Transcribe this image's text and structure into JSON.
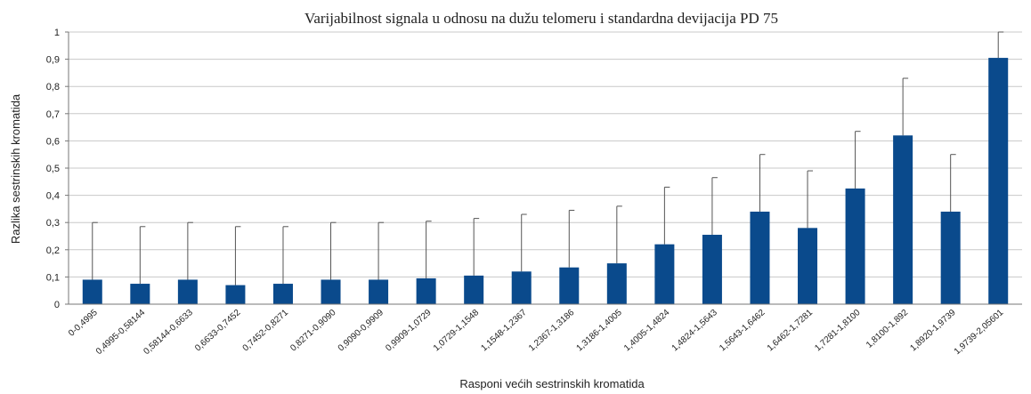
{
  "chart_data": {
    "type": "bar",
    "title": "Varijabilnost signala u odnosu na dužu telomeru i standardna devijacija PD 75",
    "xlabel": "Rasponi većih sestrinskih kromatida",
    "ylabel": "Razlika sestrinskih kromatida",
    "ylim": [
      0,
      1
    ],
    "yticks": [
      "0",
      "0,1",
      "0,2",
      "0,3",
      "0,4",
      "0,5",
      "0,6",
      "0,7",
      "0,8",
      "0,9",
      "1"
    ],
    "grid": true,
    "bar_color": "#0a4a8c",
    "categories": [
      "0-0,4995",
      "0,4995-0,58144",
      "0,58144-0,6633",
      "0,6633-0,7452",
      "0,7452-0,8271",
      "0,8271-0,9090",
      "0,9090-0,9909",
      "0,9909-1,0729",
      "1,0729-1,1548",
      "1,1548-1,2367",
      "1,2367-1,3186",
      "1,3186-1,4005",
      "1,4005-1,4824",
      "1,4824-1,5643",
      "1,5643-1,6462",
      "1,6462-1,7281",
      "1,7281-1,8100",
      "1,8100-1,892",
      "1,8920-1,9739",
      "1,9739-2,05601"
    ],
    "values": [
      0.09,
      0.075,
      0.09,
      0.07,
      0.075,
      0.09,
      0.09,
      0.095,
      0.105,
      0.12,
      0.135,
      0.15,
      0.22,
      0.255,
      0.34,
      0.28,
      0.425,
      0.62,
      0.34,
      0.905
    ],
    "error_upper": [
      0.3,
      0.285,
      0.3,
      0.285,
      0.285,
      0.3,
      0.3,
      0.305,
      0.315,
      0.33,
      0.345,
      0.36,
      0.43,
      0.465,
      0.55,
      0.49,
      0.635,
      0.83,
      0.55,
      1.0
    ]
  }
}
